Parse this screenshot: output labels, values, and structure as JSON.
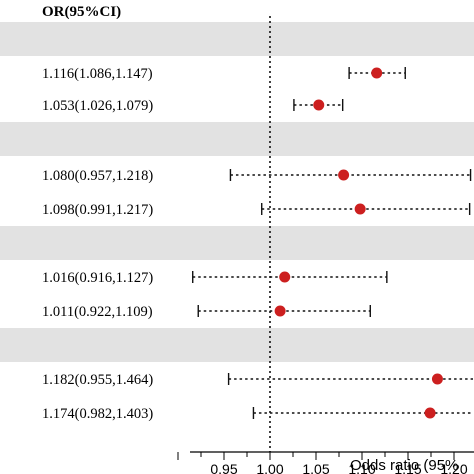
{
  "header": {
    "column_title": "OR(95%CI)"
  },
  "chart_data": {
    "type": "forest",
    "xlabel": "Odds ratio (95%",
    "xlim": [
      0.9,
      1.22
    ],
    "x_ticks": [
      0.95,
      1.0,
      1.05,
      1.1,
      1.15,
      1.2
    ],
    "x_tick_labels": [
      "0.95",
      "1.00",
      "1.05",
      "1.10",
      "1.15",
      "1.20"
    ],
    "reference_line": 1.0,
    "point_color": "#cc1f1f",
    "band_color": "#e2e2e2",
    "rows": [
      {
        "kind": "group"
      },
      {
        "kind": "estimate",
        "label": "1.116(1.086,1.147)",
        "or": 1.116,
        "lower": 1.086,
        "upper": 1.147
      },
      {
        "kind": "estimate",
        "label": "1.053(1.026,1.079)",
        "or": 1.053,
        "lower": 1.026,
        "upper": 1.079
      },
      {
        "kind": "group"
      },
      {
        "kind": "estimate",
        "label": "1.080(0.957,1.218)",
        "or": 1.08,
        "lower": 0.957,
        "upper": 1.218
      },
      {
        "kind": "estimate",
        "label": "1.098(0.991,1.217)",
        "or": 1.098,
        "lower": 0.991,
        "upper": 1.217
      },
      {
        "kind": "group"
      },
      {
        "kind": "estimate",
        "label": "1.016(0.916,1.127)",
        "or": 1.016,
        "lower": 0.916,
        "upper": 1.127
      },
      {
        "kind": "estimate",
        "label": "1.011(0.922,1.109)",
        "or": 1.011,
        "lower": 0.922,
        "upper": 1.109
      },
      {
        "kind": "group"
      },
      {
        "kind": "estimate",
        "label": "1.182(0.955,1.464)",
        "or": 1.182,
        "lower": 0.955,
        "upper": 1.464
      },
      {
        "kind": "estimate",
        "label": "1.174(0.982,1.403)",
        "or": 1.174,
        "lower": 0.982,
        "upper": 1.403
      }
    ]
  }
}
